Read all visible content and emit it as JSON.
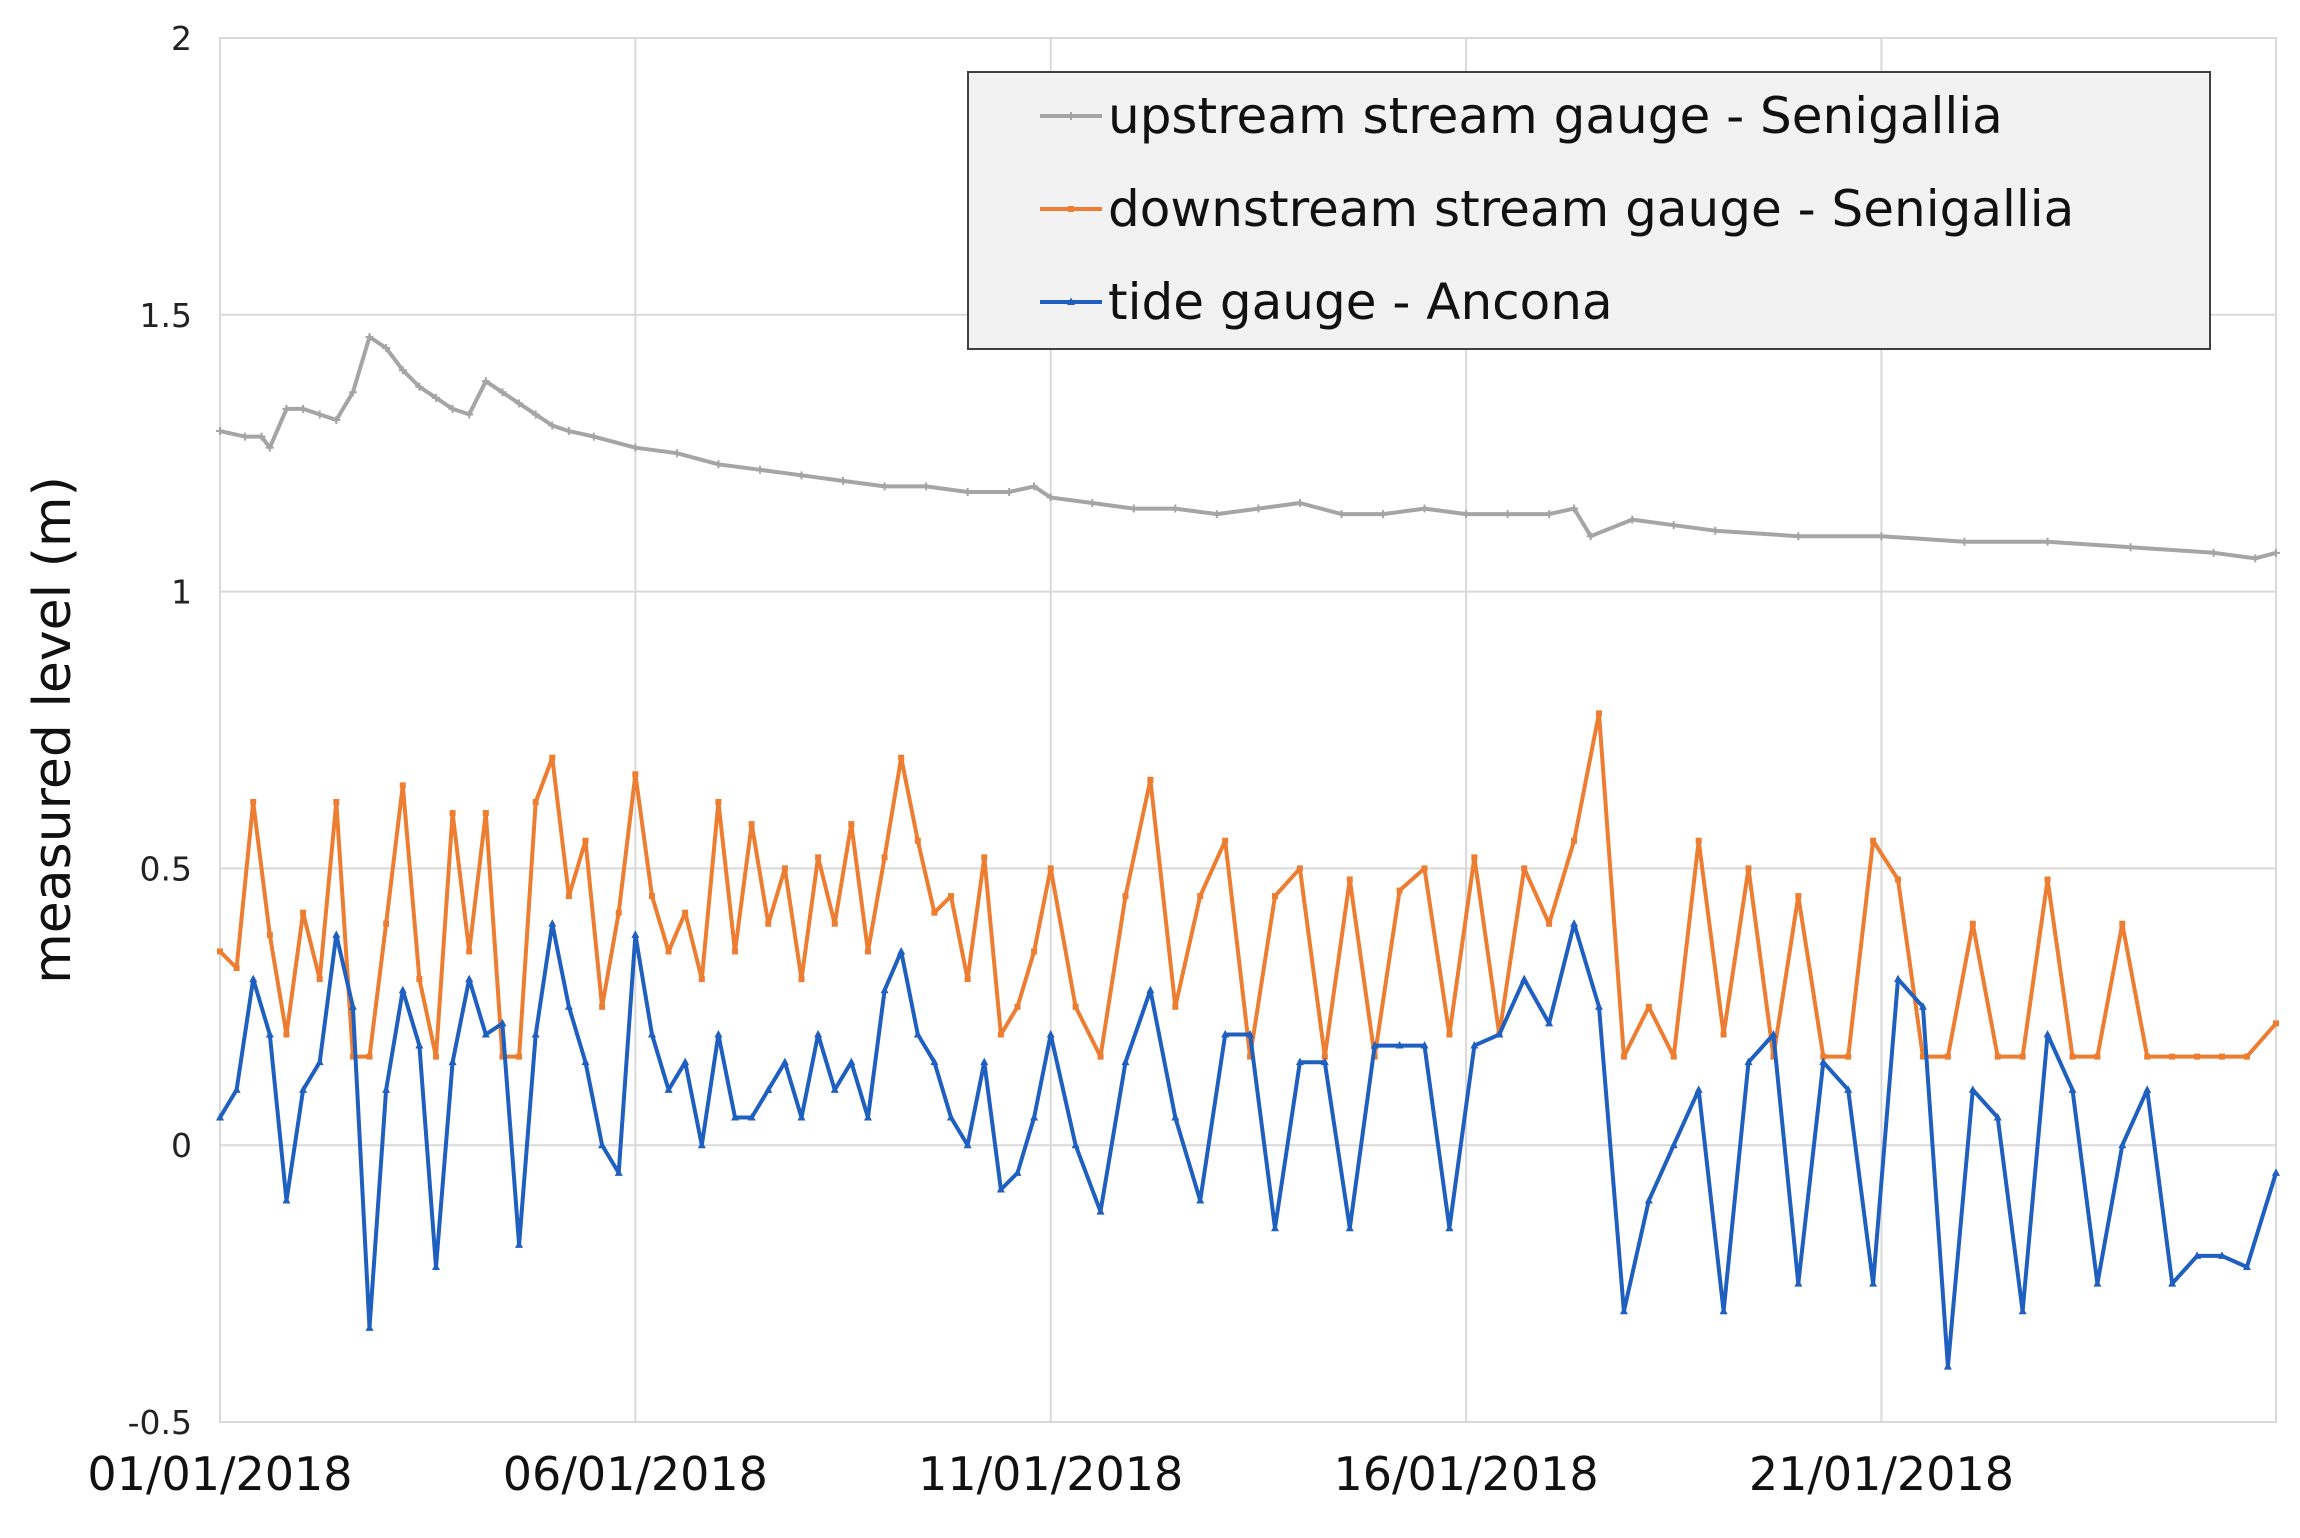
{
  "chart_data": {
    "type": "line",
    "title": "",
    "xlabel": "",
    "ylabel": "measured level (m)",
    "ylim": [
      -0.5,
      2
    ],
    "yticks": [
      -0.5,
      0,
      0.5,
      1,
      1.5,
      2
    ],
    "ytick_labels": [
      "-0.5",
      "0",
      "0.5",
      "1",
      "1.5",
      "2"
    ],
    "xlim": [
      0,
      24.75
    ],
    "xticks": [
      0,
      5,
      10,
      15,
      20
    ],
    "xtick_labels": [
      "01/01/2018",
      "06/01/2018",
      "11/01/2018",
      "16/01/2018",
      "21/01/2018"
    ],
    "grid": true,
    "legend_position": "top-right",
    "series": [
      {
        "name": "upstream stream gauge - Senigallia",
        "color": "#a5a5a5",
        "marker": "plus",
        "x": [
          0,
          0.3,
          0.5,
          0.6,
          0.8,
          1.0,
          1.2,
          1.4,
          1.6,
          1.8,
          2.0,
          2.2,
          2.4,
          2.6,
          2.8,
          3.0,
          3.2,
          3.4,
          3.6,
          3.8,
          4.0,
          4.2,
          4.5,
          5.0,
          5.5,
          6.0,
          6.5,
          7.0,
          7.5,
          8.0,
          8.5,
          9.0,
          9.5,
          9.8,
          10.0,
          10.5,
          11.0,
          11.5,
          12.0,
          12.5,
          13.0,
          13.5,
          14.0,
          14.5,
          15.0,
          15.5,
          16.0,
          16.3,
          16.5,
          17.0,
          17.5,
          18.0,
          19.0,
          20.0,
          21.0,
          22.0,
          23.0,
          24.0,
          24.5,
          24.75
        ],
        "y": [
          1.29,
          1.28,
          1.28,
          1.26,
          1.33,
          1.33,
          1.32,
          1.31,
          1.36,
          1.46,
          1.44,
          1.4,
          1.37,
          1.35,
          1.33,
          1.32,
          1.38,
          1.36,
          1.34,
          1.32,
          1.3,
          1.29,
          1.28,
          1.26,
          1.25,
          1.23,
          1.22,
          1.21,
          1.2,
          1.19,
          1.19,
          1.18,
          1.18,
          1.19,
          1.17,
          1.16,
          1.15,
          1.15,
          1.14,
          1.15,
          1.16,
          1.14,
          1.14,
          1.15,
          1.14,
          1.14,
          1.14,
          1.15,
          1.1,
          1.13,
          1.12,
          1.11,
          1.1,
          1.1,
          1.09,
          1.09,
          1.08,
          1.07,
          1.06,
          1.07
        ]
      },
      {
        "name": "downstream stream gauge - Senigallia",
        "color": "#ed7d31",
        "marker": "square",
        "x": [
          0,
          0.2,
          0.4,
          0.6,
          0.8,
          1.0,
          1.2,
          1.4,
          1.6,
          1.8,
          2.0,
          2.2,
          2.4,
          2.6,
          2.8,
          3.0,
          3.2,
          3.4,
          3.6,
          3.8,
          4.0,
          4.2,
          4.4,
          4.6,
          4.8,
          5.0,
          5.2,
          5.4,
          5.6,
          5.8,
          6.0,
          6.2,
          6.4,
          6.6,
          6.8,
          7.0,
          7.2,
          7.4,
          7.6,
          7.8,
          8.0,
          8.2,
          8.4,
          8.6,
          8.8,
          9.0,
          9.2,
          9.4,
          9.6,
          9.8,
          10.0,
          10.3,
          10.6,
          10.9,
          11.2,
          11.5,
          11.8,
          12.1,
          12.4,
          12.7,
          13.0,
          13.3,
          13.6,
          13.9,
          14.2,
          14.5,
          14.8,
          15.1,
          15.4,
          15.7,
          16.0,
          16.3,
          16.6,
          16.9,
          17.2,
          17.5,
          17.8,
          18.1,
          18.4,
          18.7,
          19.0,
          19.3,
          19.6,
          19.9,
          20.2,
          20.5,
          20.8,
          21.1,
          21.4,
          21.7,
          22.0,
          22.3,
          22.6,
          22.9,
          23.2,
          23.5,
          23.8,
          24.1,
          24.4,
          24.75
        ],
        "y": [
          0.35,
          0.32,
          0.62,
          0.38,
          0.2,
          0.42,
          0.3,
          0.62,
          0.16,
          0.16,
          0.4,
          0.65,
          0.3,
          0.16,
          0.6,
          0.35,
          0.6,
          0.16,
          0.16,
          0.62,
          0.7,
          0.45,
          0.55,
          0.25,
          0.42,
          0.67,
          0.45,
          0.35,
          0.42,
          0.3,
          0.62,
          0.35,
          0.58,
          0.4,
          0.5,
          0.3,
          0.52,
          0.4,
          0.58,
          0.35,
          0.52,
          0.7,
          0.55,
          0.42,
          0.45,
          0.3,
          0.52,
          0.2,
          0.25,
          0.35,
          0.5,
          0.25,
          0.16,
          0.45,
          0.66,
          0.25,
          0.45,
          0.55,
          0.16,
          0.45,
          0.5,
          0.16,
          0.48,
          0.16,
          0.46,
          0.5,
          0.2,
          0.52,
          0.2,
          0.5,
          0.4,
          0.55,
          0.78,
          0.16,
          0.25,
          0.16,
          0.55,
          0.2,
          0.5,
          0.16,
          0.45,
          0.16,
          0.16,
          0.55,
          0.48,
          0.16,
          0.16,
          0.4,
          0.16,
          0.16,
          0.48,
          0.16,
          0.16,
          0.4,
          0.16,
          0.16,
          0.16,
          0.16,
          0.16,
          0.22
        ]
      },
      {
        "name": "tide gauge - Ancona",
        "color": "#1f5fbf",
        "marker": "triangle",
        "x": [
          0,
          0.2,
          0.4,
          0.6,
          0.8,
          1.0,
          1.2,
          1.4,
          1.6,
          1.8,
          2.0,
          2.2,
          2.4,
          2.6,
          2.8,
          3.0,
          3.2,
          3.4,
          3.6,
          3.8,
          4.0,
          4.2,
          4.4,
          4.6,
          4.8,
          5.0,
          5.2,
          5.4,
          5.6,
          5.8,
          6.0,
          6.2,
          6.4,
          6.6,
          6.8,
          7.0,
          7.2,
          7.4,
          7.6,
          7.8,
          8.0,
          8.2,
          8.4,
          8.6,
          8.8,
          9.0,
          9.2,
          9.4,
          9.6,
          9.8,
          10.0,
          10.3,
          10.6,
          10.9,
          11.2,
          11.5,
          11.8,
          12.1,
          12.4,
          12.7,
          13.0,
          13.3,
          13.6,
          13.9,
          14.2,
          14.5,
          14.8,
          15.1,
          15.4,
          15.7,
          16.0,
          16.3,
          16.6,
          16.9,
          17.2,
          17.5,
          17.8,
          18.1,
          18.4,
          18.7,
          19.0,
          19.3,
          19.6,
          19.9,
          20.2,
          20.5,
          20.8,
          21.1,
          21.4,
          21.7,
          22.0,
          22.3,
          22.6,
          22.9,
          23.2,
          23.5,
          23.8,
          24.1,
          24.4,
          24.75
        ],
        "y": [
          0.05,
          0.1,
          0.3,
          0.2,
          -0.1,
          0.1,
          0.15,
          0.38,
          0.25,
          -0.33,
          0.1,
          0.28,
          0.18,
          -0.22,
          0.15,
          0.3,
          0.2,
          0.22,
          -0.18,
          0.2,
          0.4,
          0.25,
          0.15,
          0.0,
          -0.05,
          0.38,
          0.2,
          0.1,
          0.15,
          0.0,
          0.2,
          0.05,
          0.05,
          0.1,
          0.15,
          0.05,
          0.2,
          0.1,
          0.15,
          0.05,
          0.28,
          0.35,
          0.2,
          0.15,
          0.05,
          0.0,
          0.15,
          -0.08,
          -0.05,
          0.05,
          0.2,
          0.0,
          -0.12,
          0.15,
          0.28,
          0.05,
          -0.1,
          0.2,
          0.2,
          -0.15,
          0.15,
          0.15,
          -0.15,
          0.18,
          0.18,
          0.18,
          -0.15,
          0.18,
          0.2,
          0.3,
          0.22,
          0.4,
          0.25,
          -0.3,
          -0.1,
          0.0,
          0.1,
          -0.3,
          0.15,
          0.2,
          -0.25,
          0.15,
          0.1,
          -0.25,
          0.3,
          0.25,
          -0.4,
          0.1,
          0.05,
          -0.3,
          0.2,
          0.1,
          -0.25,
          0.0,
          0.1,
          -0.25,
          -0.2,
          -0.2,
          -0.22,
          -0.05
        ]
      }
    ]
  }
}
